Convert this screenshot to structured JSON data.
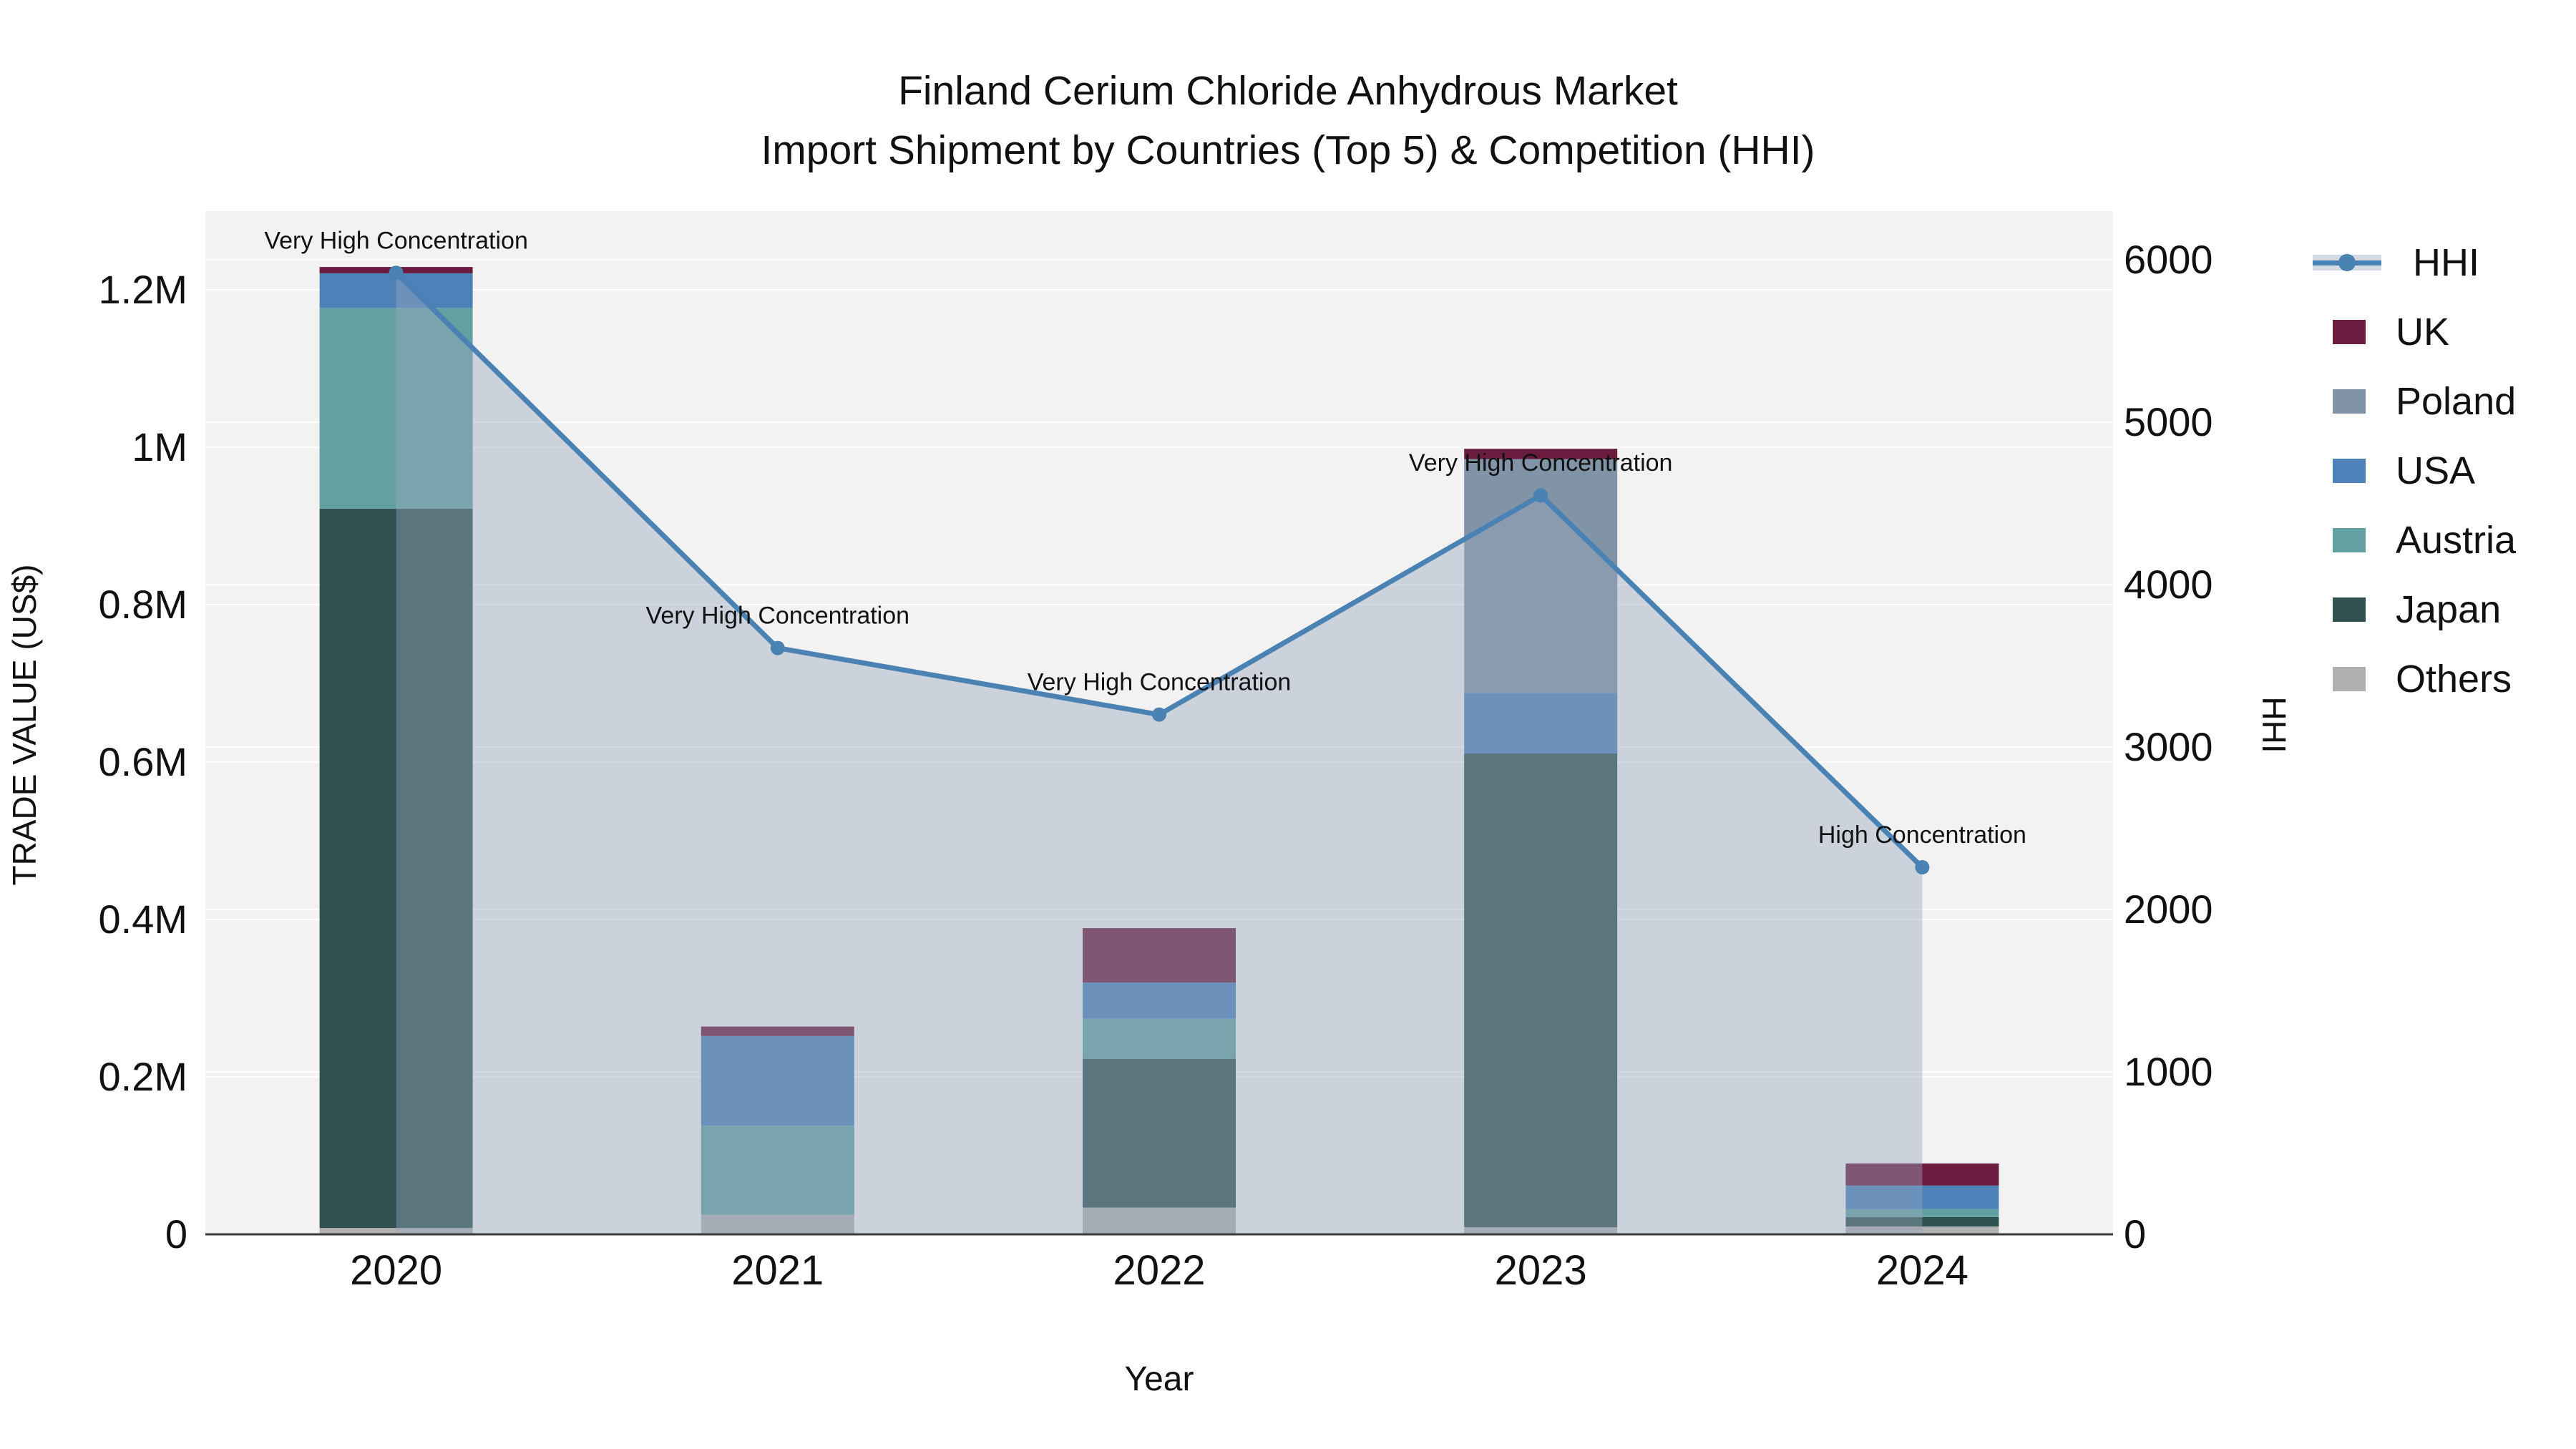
{
  "title": {
    "line1": "Finland Cerium Chloride Anhydrous Market",
    "line2": "Import Shipment by Countries (Top 5) & Competition (HHI)"
  },
  "chart_data": {
    "type": "combo: stacked-bar (trade value) + line-area (HHI, right axis)",
    "categories": [
      "2020",
      "2021",
      "2022",
      "2023",
      "2024"
    ],
    "x_axis": {
      "title": "Year"
    },
    "y_left": {
      "title": "TRADE VALUE (US$)",
      "tick_labels": [
        "0",
        "0.2M",
        "0.4M",
        "0.6M",
        "0.8M",
        "1M",
        "1.2M"
      ],
      "tick_values": [
        0,
        200000,
        400000,
        600000,
        800000,
        1000000,
        1200000
      ],
      "range_max": 1300000
    },
    "y_right": {
      "title": "HHI",
      "tick_labels": [
        "0",
        "1000",
        "2000",
        "3000",
        "4000",
        "5000",
        "6000"
      ],
      "tick_values": [
        0,
        1000,
        2000,
        3000,
        4000,
        5000,
        6000
      ],
      "range_max": 6300
    },
    "bar_series": [
      {
        "name": "UK",
        "color": "#6b1b3e",
        "values": [
          8000,
          12000,
          69000,
          13000,
          28000
        ]
      },
      {
        "name": "Poland",
        "color": "#8093a7",
        "values": [
          0,
          0,
          0,
          297000,
          0
        ]
      },
      {
        "name": "USA",
        "color": "#4d82b8",
        "values": [
          44000,
          114000,
          46000,
          77000,
          30000
        ]
      },
      {
        "name": "Austria",
        "color": "#62a0a2",
        "values": [
          255000,
          113000,
          51000,
          0,
          10000
        ]
      },
      {
        "name": "Japan",
        "color": "#2f5152",
        "values": [
          914000,
          0,
          189000,
          602000,
          12000
        ]
      },
      {
        "name": "Others",
        "color": "#b0b0b0",
        "values": [
          8000,
          25000,
          34000,
          9000,
          10000
        ]
      }
    ],
    "stack_order_bottom_to_top": [
      "Others",
      "Japan",
      "Austria",
      "USA",
      "Poland",
      "UK"
    ],
    "bar_totals": [
      1229000,
      264000,
      389000,
      998000,
      90000
    ],
    "line_series": {
      "name": "HHI",
      "values": [
        5920,
        3610,
        3200,
        4550,
        2260
      ],
      "color": "#4a82b4",
      "area_fill": "rgba(152,166,188,0.42)"
    },
    "annotations": [
      {
        "category": "2020",
        "text": "Very High Concentration"
      },
      {
        "category": "2021",
        "text": "Very High Concentration"
      },
      {
        "category": "2022",
        "text": "Very High Concentration"
      },
      {
        "category": "2023",
        "text": "Very High Concentration"
      },
      {
        "category": "2024",
        "text": "High Concentration"
      }
    ],
    "legend_order": [
      "HHI",
      "UK",
      "Poland",
      "USA",
      "Austria",
      "Japan",
      "Others"
    ],
    "plot_bg": "#f2f2f2",
    "grid_color": "rgba(255,255,255,0.9)",
    "axis_line_color": "#3a3a3a",
    "text_color": "#111111"
  }
}
